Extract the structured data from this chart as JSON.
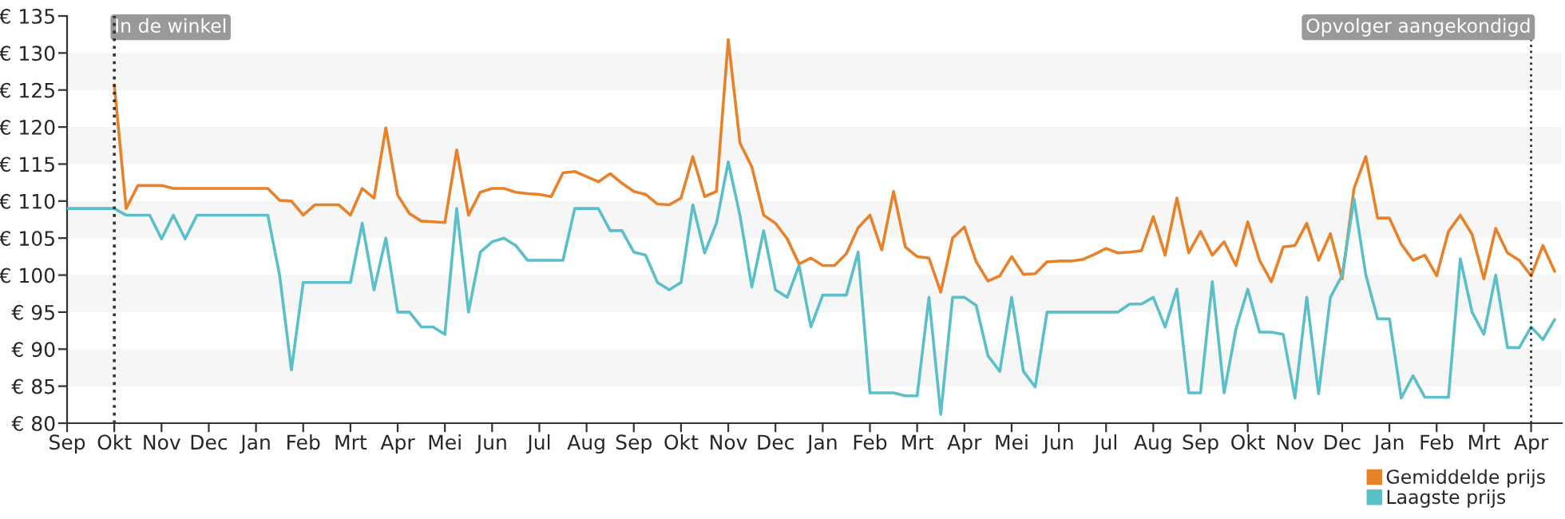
{
  "chart_data": {
    "type": "line",
    "categories": [
      "Sep",
      null,
      null,
      null,
      "Okt",
      null,
      null,
      null,
      "Nov",
      null,
      null,
      null,
      "Dec",
      null,
      null,
      null,
      "Jan",
      null,
      null,
      null,
      "Feb",
      null,
      null,
      null,
      "Mrt",
      null,
      null,
      null,
      "Apr",
      null,
      null,
      null,
      "Mei",
      null,
      null,
      null,
      "Jun",
      null,
      null,
      null,
      "Jul",
      null,
      null,
      null,
      "Aug",
      null,
      null,
      null,
      "Sep",
      null,
      null,
      null,
      "Okt",
      null,
      null,
      null,
      "Nov",
      null,
      null,
      null,
      "Dec",
      null,
      null,
      null,
      "Jan",
      null,
      null,
      null,
      "Feb",
      null,
      null,
      null,
      "Mrt",
      null,
      null,
      null,
      "Apr",
      null,
      null,
      null,
      "Mei",
      null,
      null,
      null,
      "Jun",
      null,
      null,
      null,
      "Jul",
      null,
      null,
      null,
      "Aug",
      null,
      null,
      null,
      "Sep",
      null,
      null,
      null,
      "Okt",
      null,
      null,
      null,
      "Nov",
      null,
      null,
      null,
      "Dec",
      null,
      null,
      null,
      "Jan",
      null,
      null,
      null,
      "Feb",
      null,
      null,
      null,
      "Mrt",
      null,
      null,
      null,
      "Apr",
      null,
      null
    ],
    "ylim": [
      80,
      135
    ],
    "yticks": [
      {
        "value": 80,
        "label": "€ 80"
      },
      {
        "value": 85,
        "label": "€ 85"
      },
      {
        "value": 90,
        "label": "€ 90"
      },
      {
        "value": 95,
        "label": "€ 95"
      },
      {
        "value": 100,
        "label": "€ 100"
      },
      {
        "value": 105,
        "label": "€ 105"
      },
      {
        "value": 110,
        "label": "€ 110"
      },
      {
        "value": 115,
        "label": "€ 115"
      },
      {
        "value": 120,
        "label": "€ 120"
      },
      {
        "value": 125,
        "label": "€ 125"
      },
      {
        "value": 130,
        "label": "€ 130"
      },
      {
        "value": 135,
        "label": "€ 135"
      }
    ],
    "grid": false,
    "legend": "bottom right",
    "marker": "none",
    "line_style": "solid",
    "bands": [
      {
        "axis": "y",
        "from": 85,
        "to": 90,
        "color": "#f6f6f6"
      },
      {
        "axis": "y",
        "from": 95,
        "to": 100,
        "color": "#f6f6f6"
      },
      {
        "axis": "y",
        "from": 105,
        "to": 110,
        "color": "#f6f6f6"
      },
      {
        "axis": "y",
        "from": 115,
        "to": 120,
        "color": "#f6f6f6"
      },
      {
        "axis": "y",
        "from": 125,
        "to": 130,
        "color": "#f6f6f6"
      }
    ],
    "ref_lines": [
      {
        "axis": "x",
        "value": "Okt",
        "label": "In de winkel",
        "line_style": "dotted",
        "color": "#333333"
      }
    ],
    "annotations": [
      "Opvolger aangekondigd"
    ],
    "series": [
      {
        "name": "Gemiddelde prijs",
        "color": "#e8822a",
        "values": [
          null,
          null,
          null,
          null,
          125.7,
          109,
          112.1,
          112.1,
          112.1,
          111.7,
          111.7,
          111.7,
          111.7,
          111.7,
          111.7,
          111.7,
          111.7,
          111.7,
          110.1,
          110,
          108.1,
          109.5,
          109.5,
          109.5,
          108.1,
          111.7,
          110.4,
          119.9,
          110.8,
          108.3,
          107.3,
          107.2,
          107.1,
          116.9,
          108.1,
          111.2,
          111.7,
          111.7,
          111.2,
          111.0,
          110.9,
          110.6,
          113.8,
          114.0,
          113.3,
          112.6,
          113.7,
          112.4,
          111.3,
          110.9,
          109.6,
          109.5,
          110.4,
          116.0,
          110.6,
          111.3,
          131.8,
          117.8,
          114.6,
          108.1,
          107.0,
          104.9,
          101.5,
          102.3,
          101.3,
          101.3,
          102.9,
          106.4,
          108.1,
          103.4,
          111.3,
          103.8,
          102.5,
          102.3,
          97.7,
          105.0,
          106.5,
          101.8,
          99.2,
          99.9,
          102.5,
          100.1,
          100.2,
          101.8,
          101.9,
          101.9,
          102.1,
          102.8,
          103.6,
          103.0,
          103.1,
          103.3,
          107.9,
          102.7,
          110.4,
          103.0,
          105.9,
          102.7,
          104.5,
          101.3,
          107.2,
          102.0,
          99.1,
          103.8,
          104.0,
          107.0,
          102.0,
          105.6,
          99.5,
          111.7,
          116.0,
          107.7,
          107.7,
          104.2,
          102.0,
          102.7,
          99.9,
          105.9,
          108.1,
          105.5,
          99.5,
          106.3,
          103.0,
          102.0,
          99.9,
          104.0,
          100.5
        ]
      },
      {
        "name": "Laagste prijs",
        "color": "#5bbfc9",
        "values": [
          109,
          109,
          109,
          109,
          109,
          108.1,
          108.1,
          108.1,
          104.9,
          108.1,
          104.9,
          108.1,
          108.1,
          108.1,
          108.1,
          108.1,
          108.1,
          108.1,
          100,
          87.2,
          99,
          99,
          99,
          99,
          99,
          107,
          98,
          105,
          95,
          95,
          93,
          93,
          92,
          109,
          95,
          103.1,
          104.5,
          105,
          104,
          102,
          102,
          102,
          102,
          109,
          109,
          109,
          106,
          106,
          103.1,
          102.7,
          99.0,
          98,
          99,
          109.5,
          103,
          107,
          115.3,
          108,
          98.4,
          106,
          98,
          97,
          101.3,
          93,
          97.3,
          97.3,
          97.3,
          103.1,
          84.1,
          84.1,
          84.1,
          83.7,
          83.7,
          97,
          81.2,
          97,
          97,
          95.9,
          89.1,
          87,
          97,
          87,
          84.9,
          95,
          95,
          95,
          95,
          95,
          95,
          95,
          96.1,
          96.1,
          97,
          93,
          98.1,
          84.1,
          84.1,
          99.1,
          84.1,
          92.7,
          98.1,
          92.3,
          92.3,
          92,
          83.4,
          97,
          84,
          97,
          100,
          110.3,
          100,
          94.1,
          94.1,
          83.4,
          86.4,
          83.5,
          83.5,
          83.5,
          102.2,
          95,
          92,
          100,
          90.2,
          90.2,
          93,
          91.3,
          94
        ]
      }
    ]
  }
}
